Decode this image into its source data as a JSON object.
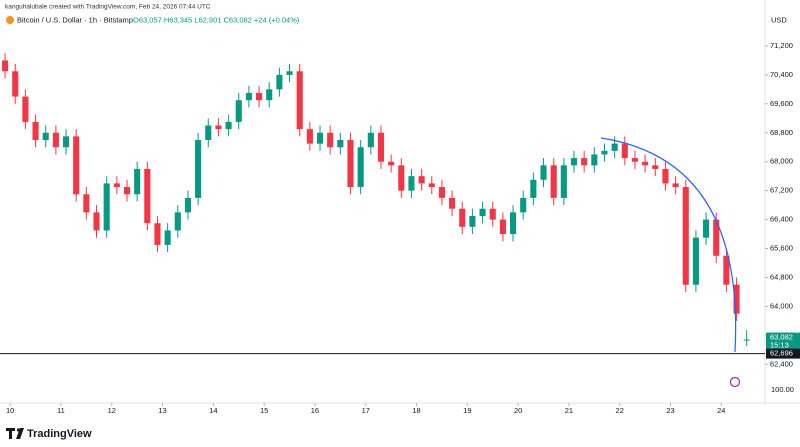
{
  "chart_data": {
    "type": "candlestick",
    "attribution": "kanguhalubale created with TradingView.com, Feb 24, 2026 07:44 UTC",
    "symbol": "Bitcoin / U.S. Dollar · 1h · Bitstamp",
    "ohlc_legend": "O63,057 H63,345 L62,901 C63,082 +24 (+0.04%)",
    "currency": "USD",
    "secondary_scale_label": "100.00",
    "brand": "TradingView",
    "up_color": "#089981",
    "down_color": "#f23645",
    "xlim": [
      9.8,
      24.86
    ],
    "xticks": [
      10,
      11,
      12,
      13,
      14,
      15,
      16,
      17,
      18,
      19,
      20,
      21,
      22,
      23,
      24
    ],
    "ylim": [
      61330,
      72470
    ],
    "yticks": [
      {
        "value": 71200,
        "label": "71,200"
      },
      {
        "value": 70400,
        "label": "70,400"
      },
      {
        "value": 69600,
        "label": "69,600"
      },
      {
        "value": 68800,
        "label": "68,800"
      },
      {
        "value": 68000,
        "label": "68,000"
      },
      {
        "value": 67200,
        "label": "67,200"
      },
      {
        "value": 66400,
        "label": "66,400"
      },
      {
        "value": 65600,
        "label": "65,600"
      },
      {
        "value": 64800,
        "label": "64,800"
      },
      {
        "value": 64000,
        "label": "64,000"
      },
      {
        "value": 63200,
        "label": "63,200"
      },
      {
        "value": 62400,
        "label": "62,400"
      }
    ],
    "last_price": {
      "value": 63082,
      "label": "63,082",
      "countdown": "15:13"
    },
    "price_line": {
      "value": 62696,
      "label": "62,696"
    },
    "x": [
      9.9,
      10.1,
      10.3,
      10.5,
      10.7,
      10.9,
      11.1,
      11.3,
      11.5,
      11.7,
      11.9,
      12.1,
      12.3,
      12.5,
      12.7,
      12.9,
      13.1,
      13.3,
      13.5,
      13.7,
      13.9,
      14.1,
      14.3,
      14.5,
      14.7,
      14.9,
      15.1,
      15.3,
      15.5,
      15.7,
      15.9,
      16.1,
      16.3,
      16.5,
      16.7,
      16.9,
      17.1,
      17.3,
      17.5,
      17.7,
      17.9,
      18.1,
      18.3,
      18.5,
      18.7,
      18.9,
      19.1,
      19.3,
      19.5,
      19.7,
      19.9,
      20.1,
      20.3,
      20.5,
      20.7,
      20.9,
      21.1,
      21.3,
      21.5,
      21.7,
      21.9,
      22.1,
      22.3,
      22.5,
      22.7,
      22.9,
      23.1,
      23.3,
      23.5,
      23.7,
      23.9,
      24.1,
      24.3,
      24.5
    ],
    "open": [
      70800,
      70500,
      69800,
      69100,
      68600,
      68800,
      68400,
      68700,
      67100,
      66600,
      66100,
      67400,
      67300,
      67100,
      67800,
      66300,
      65700,
      66100,
      66600,
      67000,
      68600,
      69000,
      68900,
      69100,
      69700,
      69900,
      69700,
      70000,
      70400,
      70500,
      68900,
      68500,
      68800,
      68400,
      68600,
      67300,
      68400,
      68800,
      68000,
      67900,
      67200,
      67600,
      67400,
      67300,
      67000,
      66700,
      66200,
      66500,
      66700,
      66400,
      66000,
      66600,
      67000,
      67500,
      67900,
      67000,
      67900,
      68100,
      67900,
      68200,
      68300,
      68500,
      68100,
      68000,
      67900,
      67800,
      67400,
      67300,
      64600,
      65900,
      66400,
      65400,
      64600,
      63057
    ],
    "high": [
      71000,
      70700,
      70000,
      69300,
      69000,
      69000,
      68900,
      68900,
      67300,
      66800,
      67600,
      67600,
      67500,
      68000,
      68000,
      66500,
      66300,
      66800,
      67200,
      68800,
      69200,
      69200,
      69300,
      69900,
      70100,
      70100,
      70200,
      70600,
      70700,
      70700,
      69100,
      69000,
      69000,
      68800,
      68800,
      68600,
      69000,
      69000,
      68200,
      68100,
      67800,
      67800,
      67600,
      67500,
      67200,
      66900,
      66700,
      66900,
      66900,
      66600,
      66800,
      67200,
      67700,
      68100,
      68100,
      68100,
      68300,
      68300,
      68400,
      68500,
      68700,
      68700,
      68300,
      68200,
      68100,
      68000,
      67600,
      67500,
      66100,
      66600,
      66600,
      65600,
      64800,
      63345
    ],
    "low": [
      70300,
      69600,
      68900,
      68400,
      68400,
      68200,
      68200,
      66900,
      66400,
      65900,
      65900,
      67100,
      66900,
      66900,
      66100,
      65500,
      65500,
      65900,
      66400,
      66800,
      68400,
      68700,
      68700,
      68900,
      69500,
      69500,
      69500,
      69800,
      70200,
      68700,
      68300,
      68300,
      68200,
      68200,
      67100,
      67100,
      68200,
      67800,
      67700,
      67000,
      67000,
      67200,
      67100,
      66800,
      66500,
      66000,
      66000,
      66300,
      66200,
      65800,
      65800,
      66400,
      66800,
      67300,
      66800,
      66800,
      67700,
      67700,
      67700,
      68000,
      68100,
      67900,
      67800,
      67700,
      67600,
      67200,
      67100,
      64400,
      64400,
      65700,
      65200,
      64400,
      63600,
      62901
    ],
    "close": [
      70500,
      69800,
      69100,
      68600,
      68800,
      68400,
      68700,
      67100,
      66600,
      66100,
      67400,
      67300,
      67100,
      67800,
      66300,
      65700,
      66100,
      66600,
      67000,
      68600,
      69000,
      68900,
      69100,
      69700,
      69900,
      69700,
      70000,
      70400,
      70500,
      68900,
      68500,
      68800,
      68400,
      68600,
      67300,
      68400,
      68800,
      68000,
      67900,
      67200,
      67600,
      67400,
      67300,
      67000,
      66700,
      66200,
      66500,
      66700,
      66400,
      66000,
      66600,
      67000,
      67500,
      67900,
      67000,
      67900,
      68100,
      67900,
      68200,
      68300,
      68500,
      68100,
      68000,
      67900,
      67800,
      67400,
      67300,
      64600,
      65900,
      66400,
      65400,
      64600,
      63800,
      63082
    ]
  }
}
